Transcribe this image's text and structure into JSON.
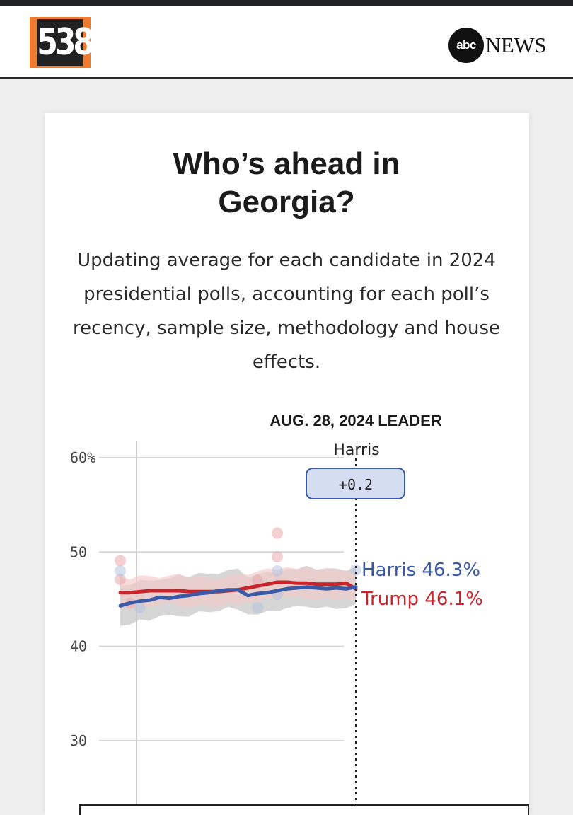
{
  "header": {
    "brand_left": "538",
    "brand_right_circle": "abc",
    "brand_right_text": "NEWS"
  },
  "card": {
    "title": "Who’s ahead in Georgia?",
    "subtitle": "Updating average for each candidate in 2024 presidential polls, accounting for each poll’s recency, sample size, methodology and house effects."
  },
  "chart_data": {
    "type": "line",
    "title": "",
    "xlabel": "",
    "ylabel": "",
    "ylim": [
      27,
      62
    ],
    "yticks": [
      {
        "value": 60,
        "label": "60%"
      },
      {
        "value": 50,
        "label": "50"
      },
      {
        "value": 40,
        "label": "40"
      },
      {
        "value": 30,
        "label": "30"
      }
    ],
    "grid": true,
    "leader_header": "AUG. 28, 2024 LEADER",
    "leader_name": "Harris",
    "leader_margin": "+0.2",
    "x": [
      0,
      1,
      2,
      3,
      4,
      5,
      6,
      7,
      8,
      9,
      10,
      11,
      12,
      13,
      14,
      15,
      16,
      17,
      18,
      19,
      20,
      21,
      22,
      23,
      24
    ],
    "series": [
      {
        "name": "Harris",
        "end_label": "Harris 46.3%",
        "color": "#3a5aa8",
        "band_color": "#c8c8c8",
        "values": [
          44.3,
          44.6,
          44.8,
          44.9,
          45.2,
          45.1,
          45.3,
          45.4,
          45.6,
          45.7,
          45.9,
          46.0,
          46.0,
          45.4,
          45.6,
          45.7,
          45.9,
          46.1,
          46.2,
          46.3,
          46.2,
          46.1,
          46.2,
          46.1,
          46.3
        ]
      },
      {
        "name": "Trump",
        "end_label": "Trump 46.1%",
        "color": "#c8242b",
        "band_color": "#f2c9c9",
        "values": [
          45.7,
          45.7,
          45.8,
          45.9,
          45.9,
          45.9,
          45.9,
          45.8,
          45.8,
          45.8,
          45.8,
          45.9,
          46.0,
          46.2,
          46.4,
          46.6,
          46.8,
          46.8,
          46.7,
          46.7,
          46.6,
          46.6,
          46.6,
          46.7,
          46.1
        ]
      }
    ],
    "polls": [
      {
        "x": 0,
        "y": 49.1,
        "who": "Trump"
      },
      {
        "x": 0,
        "y": 47.1,
        "who": "Trump"
      },
      {
        "x": 0,
        "y": 48.0,
        "who": "Harris"
      },
      {
        "x": 1,
        "y": 44.6,
        "who": "Trump"
      },
      {
        "x": 2,
        "y": 44.1,
        "who": "Harris"
      },
      {
        "x": 14,
        "y": 47.0,
        "who": "Trump"
      },
      {
        "x": 14,
        "y": 44.1,
        "who": "Harris"
      },
      {
        "x": 16,
        "y": 52.0,
        "who": "Trump"
      },
      {
        "x": 16,
        "y": 49.5,
        "who": "Trump"
      },
      {
        "x": 16,
        "y": 48.0,
        "who": "Harris"
      },
      {
        "x": 16,
        "y": 45.5,
        "who": "Harris"
      },
      {
        "x": 24,
        "y": 48.1,
        "who": "Harris"
      }
    ]
  }
}
